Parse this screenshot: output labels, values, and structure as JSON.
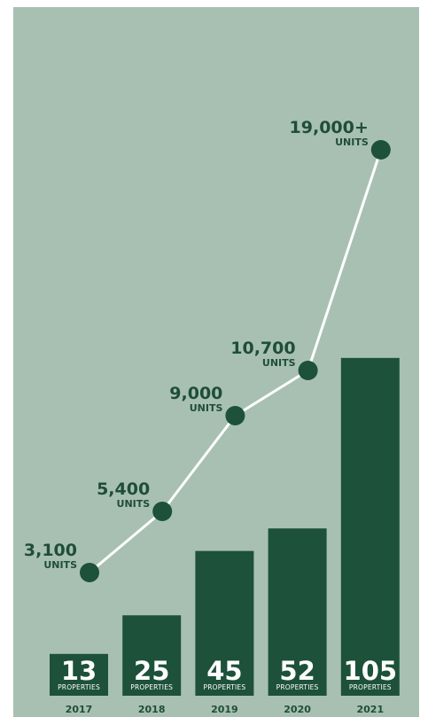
{
  "chart_data": {
    "type": "bar+line",
    "categories": [
      "2017",
      "2018",
      "2019",
      "2020",
      "2021"
    ],
    "bars": {
      "values": [
        13,
        25,
        45,
        52,
        105
      ],
      "value_labels": [
        "13",
        "25",
        "45",
        "52",
        "105"
      ],
      "unit_label": "PROPERTIES",
      "color": "#1d5139"
    },
    "line": {
      "values": [
        3100,
        5400,
        9000,
        10700,
        19000
      ],
      "value_labels": [
        "3,100",
        "5,400",
        "9,000",
        "10,700",
        "19,000+"
      ],
      "unit_label": "UNITS",
      "line_color": "#ffffff",
      "marker_color": "#1d5139"
    },
    "background_color": "#a8c0b2",
    "text_color": "#1f4e38",
    "grid": false,
    "legend": "none"
  }
}
